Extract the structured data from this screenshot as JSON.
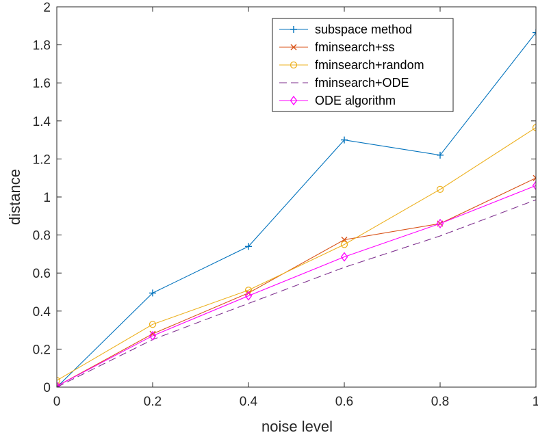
{
  "chart_data": {
    "type": "line",
    "title": "",
    "xlabel": "noise level",
    "ylabel": "distance",
    "xlim": [
      0,
      1
    ],
    "ylim": [
      0,
      2
    ],
    "xticks": [
      0,
      0.2,
      0.4,
      0.6,
      0.8,
      1
    ],
    "xtick_labels": [
      "0",
      "0.2",
      "0.4",
      "0.6",
      "0.8",
      "1"
    ],
    "yticks": [
      0,
      0.2,
      0.4,
      0.6,
      0.8,
      1,
      1.2,
      1.4,
      1.6,
      1.8,
      2
    ],
    "ytick_labels": [
      "0",
      "0.2",
      "0.4",
      "0.6",
      "0.8",
      "1",
      "1.2",
      "1.4",
      "1.6",
      "1.8",
      "2"
    ],
    "grid": false,
    "legend_position": "top-right",
    "x": [
      0,
      0.2,
      0.4,
      0.6,
      0.8,
      1
    ],
    "series": [
      {
        "name": "subspace method",
        "values": [
          0.0,
          0.495,
          0.74,
          1.3,
          1.22,
          1.865
        ],
        "color": "#0072BD",
        "marker": "plus",
        "dash": "solid"
      },
      {
        "name": "fminsearch+ss",
        "values": [
          0.005,
          0.28,
          0.495,
          0.775,
          0.86,
          1.1
        ],
        "color": "#D95319",
        "marker": "x",
        "dash": "solid"
      },
      {
        "name": "fminsearch+random",
        "values": [
          0.035,
          0.33,
          0.51,
          0.75,
          1.04,
          1.365
        ],
        "color": "#EDB120",
        "marker": "circle",
        "dash": "solid"
      },
      {
        "name": "fminsearch+ODE",
        "values": [
          0.0,
          0.25,
          0.44,
          0.63,
          0.795,
          0.985
        ],
        "color": "#7E2F8E",
        "marker": "none",
        "dash": "dashed"
      },
      {
        "name": "ODE algorithm",
        "values": [
          0.005,
          0.27,
          0.48,
          0.685,
          0.86,
          1.06
        ],
        "color": "#FF00FF",
        "marker": "diamond",
        "dash": "solid"
      }
    ]
  }
}
